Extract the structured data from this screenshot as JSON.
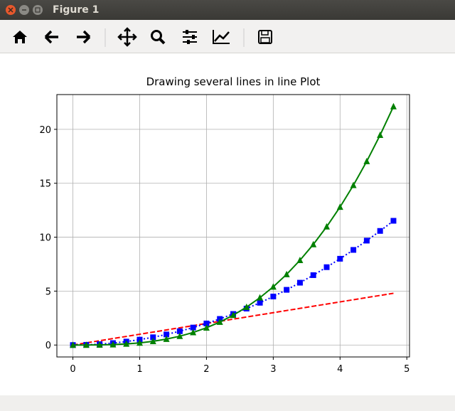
{
  "window": {
    "title": "Figure 1"
  },
  "chart_data": {
    "type": "line",
    "title": "Drawing several lines in line Plot",
    "x": [
      0,
      0.2,
      0.4,
      0.6,
      0.8,
      1,
      1.2,
      1.4,
      1.6,
      1.8,
      2,
      2.2,
      2.4,
      2.6,
      2.8,
      3,
      3.2,
      3.4,
      3.6,
      3.8,
      4,
      4.2,
      4.4,
      4.6,
      4.8
    ],
    "series": [
      {
        "color": "#ff0000",
        "dash": "dashed",
        "marker": "none",
        "values": [
          0,
          0.2,
          0.4,
          0.6,
          0.8,
          1,
          1.2,
          1.4,
          1.6,
          1.8,
          2,
          2.2,
          2.4,
          2.6,
          2.8,
          3,
          3.2,
          3.4,
          3.6,
          3.8,
          4,
          4.2,
          4.4,
          4.6,
          4.8
        ]
      },
      {
        "color": "#0000ff",
        "dash": "dotted",
        "marker": "square",
        "values": [
          0,
          0.02,
          0.08,
          0.18,
          0.32,
          0.5,
          0.72,
          0.98,
          1.28,
          1.62,
          2,
          2.42,
          2.88,
          3.38,
          3.92,
          4.5,
          5.12,
          5.78,
          6.48,
          7.22,
          8,
          8.82,
          9.68,
          10.58,
          11.52
        ]
      },
      {
        "color": "#008000",
        "dash": "solid",
        "marker": "triangle",
        "values": [
          0,
          0.0016,
          0.0128,
          0.0432,
          0.1024,
          0.2,
          0.3456,
          0.5488,
          0.8192,
          1.1664,
          1.6,
          2.1296,
          2.7648,
          3.5152,
          4.3904,
          5.4,
          6.5536,
          7.8608,
          9.3312,
          10.9744,
          12.8,
          14.8176,
          17.0368,
          19.4672,
          22.1184
        ]
      }
    ],
    "xlim": [
      -0.24,
      5.04
    ],
    "ylim": [
      -1.106,
      23.224
    ],
    "xticks": [
      0,
      1,
      2,
      3,
      4,
      5
    ],
    "yticks": [
      0,
      5,
      10,
      15,
      20
    ],
    "grid": true
  }
}
